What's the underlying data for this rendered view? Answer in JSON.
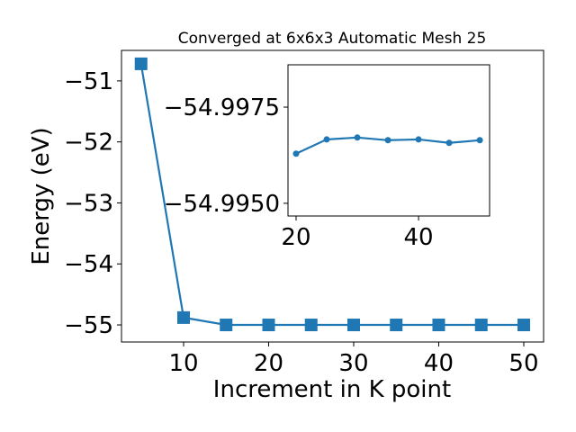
{
  "chart_data": [
    {
      "type": "line",
      "title": "Converged at 6x6x3 Automatic Mesh 25",
      "x_label": "Increment in K point",
      "y_label": "Energy (eV)",
      "x": [
        5,
        10,
        15,
        20,
        25,
        30,
        35,
        40,
        45,
        50
      ],
      "series": [
        {
          "color": "#1f77b4",
          "marker": "square",
          "values": [
            -50.72,
            -54.88,
            -55.0,
            -55.0,
            -55.0,
            -55.0,
            -55.0,
            -55.0,
            -55.0,
            -55.0
          ]
        }
      ],
      "xlim": [
        2.7,
        52.33
      ],
      "xticks": [
        10,
        20,
        30,
        40,
        50
      ],
      "ylim": [
        -55.28,
        -50.5
      ],
      "yticks": [
        {
          "value": -55,
          "label": "−55"
        },
        {
          "value": -54,
          "label": "−54"
        },
        {
          "value": -53,
          "label": "−53"
        },
        {
          "value": -52,
          "label": "−52"
        },
        {
          "value": -51,
          "label": "−51"
        }
      ]
    },
    {
      "type": "line",
      "x": [
        20,
        25,
        30,
        35,
        40,
        45,
        50
      ],
      "series": [
        {
          "color": "#1f77b4",
          "marker": "circle",
          "values": [
            -54.99629,
            -54.99666,
            -54.99671,
            -54.99664,
            -54.99666,
            -54.99657,
            -54.99664
          ]
        }
      ],
      "xlim": [
        18.68,
        51.6
      ],
      "xticks": [
        20,
        40
      ],
      "ylim": [
        -54.99467,
        -54.9986
      ],
      "yticks": [
        {
          "value": -54.995,
          "label": "−54.9950"
        },
        {
          "value": -54.9975,
          "label": "−54.9975"
        }
      ]
    }
  ]
}
